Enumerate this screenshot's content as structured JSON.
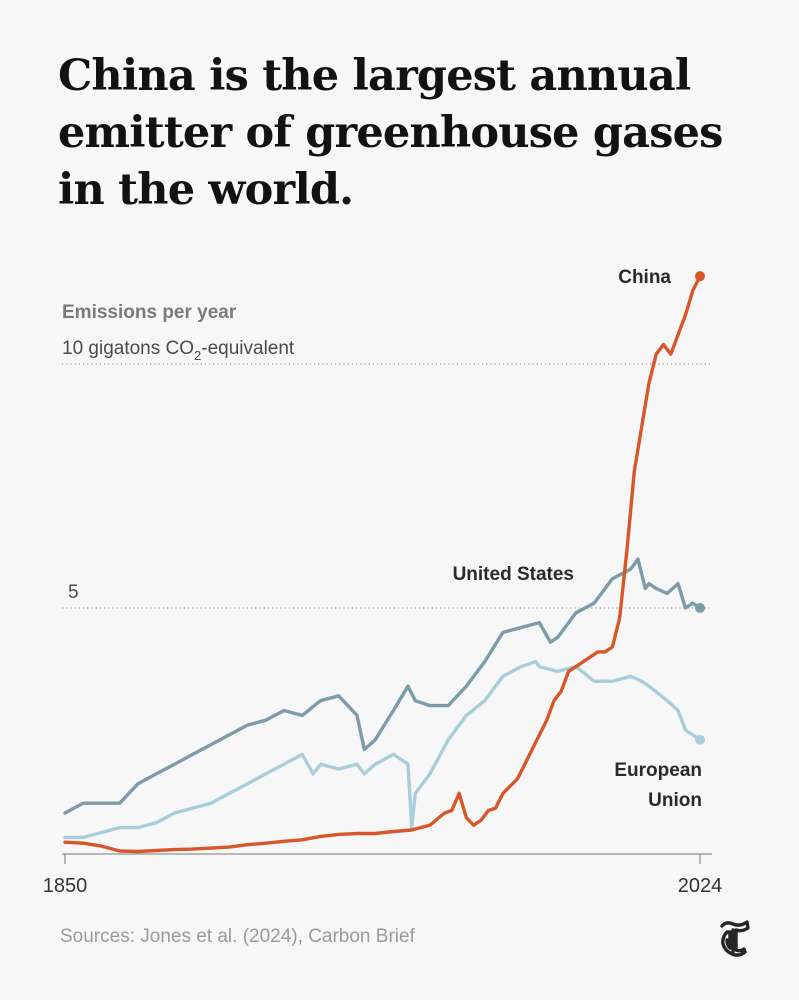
{
  "headline": [
    "China is the largest annual",
    "emitter of greenhouse gases",
    "in the world."
  ],
  "source": "Sources: Jones et al. (2024), Carbon Brief",
  "logo_icon": "nyt-t-logo-icon",
  "colors": {
    "china": "#d7572a",
    "united_states": "#7c9caa",
    "european_union": "#a8cddb",
    "gridline": "#9a9a9a",
    "axis": "#777777"
  },
  "chart_data": {
    "type": "line",
    "title": "Emissions per year",
    "unit_prefix": "10 gigatons CO",
    "unit_sub": "2",
    "unit_suffix": "-equivalent",
    "y_ticks": [
      5,
      10
    ],
    "y_tick_labels": [
      "5",
      ""
    ],
    "ylim": [
      0,
      12
    ],
    "xlim": [
      1850,
      2024
    ],
    "x_tick_labels": [
      "1850",
      "2024"
    ],
    "gridlines": "dotted at 5 and 10",
    "series": [
      {
        "name": "China",
        "label": "China",
        "x": [
          1850,
          1855,
          1860,
          1865,
          1870,
          1875,
          1880,
          1885,
          1890,
          1895,
          1900,
          1905,
          1910,
          1915,
          1920,
          1925,
          1930,
          1935,
          1940,
          1945,
          1950,
          1954,
          1956,
          1958,
          1960,
          1962,
          1964,
          1966,
          1968,
          1970,
          1972,
          1974,
          1976,
          1978,
          1980,
          1982,
          1984,
          1986,
          1988,
          1990,
          1992,
          1994,
          1996,
          1998,
          2000,
          2002,
          2004,
          2006,
          2008,
          2010,
          2012,
          2014,
          2016,
          2018,
          2020,
          2022,
          2024
        ],
        "values": [
          0.2,
          0.18,
          0.12,
          0.02,
          0.01,
          0.03,
          0.05,
          0.06,
          0.08,
          0.1,
          0.15,
          0.18,
          0.22,
          0.25,
          0.32,
          0.36,
          0.38,
          0.38,
          0.42,
          0.45,
          0.55,
          0.8,
          0.85,
          1.2,
          0.7,
          0.55,
          0.65,
          0.85,
          0.9,
          1.2,
          1.35,
          1.5,
          1.8,
          2.1,
          2.4,
          2.7,
          3.1,
          3.3,
          3.7,
          3.8,
          3.9,
          4.0,
          4.1,
          4.1,
          4.2,
          4.8,
          6.2,
          7.8,
          8.7,
          9.6,
          10.2,
          10.4,
          10.2,
          10.6,
          11.0,
          11.5,
          11.8
        ]
      },
      {
        "name": "United States",
        "label": "United States",
        "x": [
          1850,
          1855,
          1860,
          1865,
          1870,
          1875,
          1880,
          1885,
          1890,
          1895,
          1900,
          1905,
          1910,
          1915,
          1920,
          1925,
          1930,
          1932,
          1935,
          1940,
          1944,
          1946,
          1950,
          1955,
          1960,
          1965,
          1970,
          1975,
          1980,
          1983,
          1985,
          1990,
          1995,
          2000,
          2005,
          2007,
          2009,
          2010,
          2012,
          2015,
          2018,
          2020,
          2022,
          2024
        ],
        "values": [
          0.8,
          1.0,
          1.0,
          1.0,
          1.4,
          1.6,
          1.8,
          2.0,
          2.2,
          2.4,
          2.6,
          2.7,
          2.9,
          2.8,
          3.1,
          3.2,
          2.8,
          2.1,
          2.3,
          2.9,
          3.4,
          3.1,
          3.0,
          3.0,
          3.4,
          3.9,
          4.5,
          4.6,
          4.7,
          4.3,
          4.4,
          4.9,
          5.1,
          5.6,
          5.8,
          6.0,
          5.4,
          5.5,
          5.4,
          5.3,
          5.5,
          5.0,
          5.1,
          5.0
        ]
      },
      {
        "name": "European Union",
        "label_line1": "European",
        "label_line2": "Union",
        "x": [
          1850,
          1855,
          1860,
          1865,
          1870,
          1875,
          1880,
          1885,
          1890,
          1895,
          1900,
          1905,
          1910,
          1915,
          1918,
          1920,
          1925,
          1930,
          1932,
          1935,
          1940,
          1944,
          1945,
          1946,
          1950,
          1955,
          1960,
          1965,
          1970,
          1975,
          1979,
          1980,
          1985,
          1990,
          1995,
          2000,
          2005,
          2008,
          2010,
          2015,
          2018,
          2020,
          2022,
          2024
        ],
        "values": [
          0.3,
          0.3,
          0.4,
          0.5,
          0.5,
          0.6,
          0.8,
          0.9,
          1.0,
          1.2,
          1.4,
          1.6,
          1.8,
          2.0,
          1.6,
          1.8,
          1.7,
          1.8,
          1.6,
          1.8,
          2.0,
          1.8,
          0.5,
          1.2,
          1.6,
          2.3,
          2.8,
          3.1,
          3.6,
          3.8,
          3.9,
          3.8,
          3.7,
          3.8,
          3.5,
          3.5,
          3.6,
          3.5,
          3.4,
          3.1,
          2.9,
          2.5,
          2.4,
          2.3
        ]
      }
    ]
  }
}
